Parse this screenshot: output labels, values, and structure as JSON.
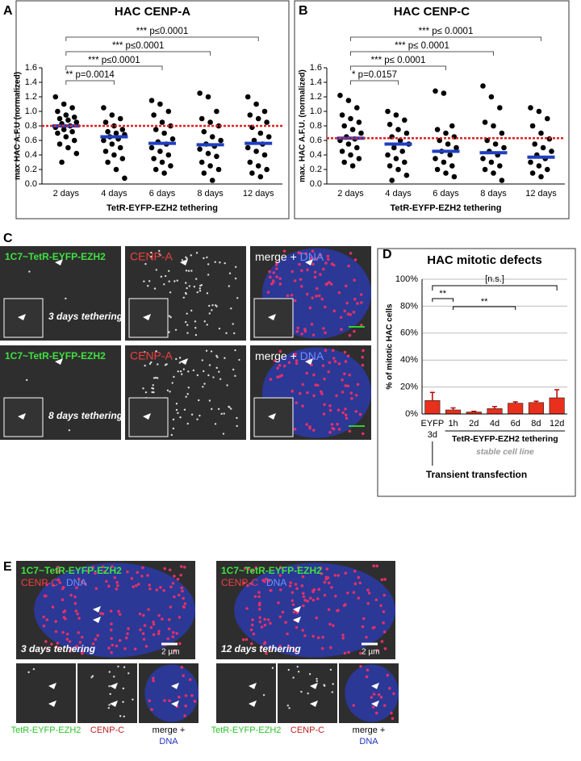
{
  "panel_labels": [
    "A",
    "B",
    "C",
    "D",
    "E"
  ],
  "chart_data": [
    {
      "type": "dotplot",
      "title": "HAC CENP-A",
      "y_label": "max HAC A.F.U (normalized)",
      "x_label": "TetR-EYFP-EZH2 tethering",
      "categories": [
        "2 days",
        "4 days",
        "6 days",
        "8 days",
        "12 days"
      ],
      "values": [
        [
          1.2,
          1.1,
          1.05,
          1.0,
          0.95,
          0.92,
          0.9,
          0.88,
          0.85,
          0.83,
          0.8,
          0.78,
          0.75,
          0.72,
          0.7,
          0.65,
          0.6,
          0.55,
          0.5,
          0.42,
          0.3
        ],
        [
          1.05,
          0.95,
          0.9,
          0.85,
          0.8,
          0.75,
          0.72,
          0.7,
          0.68,
          0.65,
          0.62,
          0.6,
          0.55,
          0.5,
          0.45,
          0.4,
          0.35,
          0.3,
          0.2,
          0.08
        ],
        [
          1.15,
          1.1,
          1.0,
          0.95,
          0.85,
          0.8,
          0.75,
          0.7,
          0.62,
          0.58,
          0.55,
          0.5,
          0.45,
          0.4,
          0.35,
          0.3,
          0.25,
          0.2,
          0.15
        ],
        [
          1.25,
          1.2,
          1.0,
          0.9,
          0.85,
          0.8,
          0.72,
          0.65,
          0.6,
          0.55,
          0.52,
          0.48,
          0.42,
          0.38,
          0.3,
          0.25,
          0.2,
          0.15,
          0.05
        ],
        [
          1.2,
          1.1,
          1.0,
          0.95,
          0.9,
          0.85,
          0.78,
          0.7,
          0.65,
          0.6,
          0.55,
          0.5,
          0.45,
          0.4,
          0.3,
          0.25,
          0.2,
          0.15,
          0.1
        ]
      ],
      "medians": [
        0.8,
        0.65,
        0.56,
        0.54,
        0.56
      ],
      "reference_line": 0.8,
      "comparisons": [
        "*** p≤0.0001",
        "*** p≤0.0001",
        "*** p≤0.0001",
        "** p=0.0014"
      ],
      "ylim": [
        0,
        1.6
      ],
      "yticks": [
        {
          "value": 0,
          "label": "0.0"
        },
        0.2,
        0.4,
        0.6,
        0.8,
        {
          "value": 1,
          "label": "1.0"
        },
        1.2,
        1.4,
        1.6
      ],
      "point_color": "#000000",
      "median_color": "#1f3fbf",
      "reference_color": "#e02020"
    },
    {
      "type": "dotplot",
      "title": "HAC CENP-C",
      "y_label": "max. HAC A.F.U. (normalized)",
      "x_label": "TetR-EYFP-EZH2 tethering",
      "categories": [
        "2 days",
        "4 days",
        "6 days",
        "8 days",
        "12 days"
      ],
      "values": [
        [
          1.22,
          1.15,
          1.05,
          0.95,
          0.9,
          0.85,
          0.8,
          0.75,
          0.7,
          0.65,
          0.62,
          0.6,
          0.55,
          0.5,
          0.45,
          0.4,
          0.35,
          0.3,
          0.25
        ],
        [
          1.0,
          0.95,
          0.88,
          0.82,
          0.75,
          0.7,
          0.65,
          0.6,
          0.55,
          0.5,
          0.45,
          0.4,
          0.35,
          0.3,
          0.25,
          0.2,
          0.12,
          0.05
        ],
        [
          1.28,
          1.25,
          0.8,
          0.75,
          0.7,
          0.65,
          0.6,
          0.55,
          0.5,
          0.45,
          0.4,
          0.35,
          0.3,
          0.25,
          0.2,
          0.15,
          0.1
        ],
        [
          1.35,
          1.2,
          1.05,
          0.85,
          0.8,
          0.7,
          0.6,
          0.55,
          0.5,
          0.45,
          0.4,
          0.35,
          0.3,
          0.25,
          0.2,
          0.15,
          0.05
        ],
        [
          1.05,
          1.0,
          0.9,
          0.8,
          0.7,
          0.62,
          0.55,
          0.5,
          0.45,
          0.4,
          0.35,
          0.3,
          0.25,
          0.2,
          0.15,
          0.1
        ]
      ],
      "medians": [
        0.63,
        0.55,
        0.45,
        0.43,
        0.37
      ],
      "reference_line": 0.63,
      "comparisons": [
        "*** p≤ 0.0001",
        "*** p≤ 0.0001",
        "*** p≤ 0.0001",
        "* p=0.0157"
      ],
      "ylim": [
        0,
        1.6
      ],
      "yticks": [
        {
          "value": 0,
          "label": "0.0"
        },
        0.2,
        0.4,
        0.6,
        0.8,
        {
          "value": 1,
          "label": "1.0"
        },
        1.2,
        1.4,
        1.6
      ],
      "point_color": "#000000",
      "median_color": "#1f3fbf",
      "reference_color": "#e02020"
    },
    {
      "type": "bar",
      "title": "HAC mitotic defects",
      "y_label": "% of mitotic HAC cells",
      "categories": [
        "EYFP",
        "1h",
        "2d",
        "4d",
        "6d",
        "8d",
        "12d"
      ],
      "category_sub": "3d",
      "values": [
        10,
        3,
        1.5,
        4,
        8,
        8.5,
        12
      ],
      "errors": [
        6,
        1.5,
        0.5,
        1.5,
        1,
        1,
        6
      ],
      "ylim": [
        0,
        100
      ],
      "yticks": [
        {
          "value": 0,
          "label": "0%"
        },
        {
          "value": 20,
          "label": "20%"
        },
        {
          "value": 40,
          "label": "40%"
        },
        {
          "value": 60,
          "label": "60%"
        },
        {
          "value": 80,
          "label": "80%"
        },
        {
          "value": 100,
          "label": "100%"
        }
      ],
      "grid": true,
      "color": "#e8301c",
      "error_color": "#c00000",
      "annotations": [
        "[n.s.]",
        "**",
        "**"
      ],
      "group_label": "TetR-EYFP-EZH2 tethering",
      "group_note": "stable cell line",
      "control_label": "Transient transfection"
    }
  ],
  "panel_c": {
    "channels": [
      "1C7~TetR-EYFP-EZH2",
      "CENP-A",
      "merge + ",
      "DNA"
    ],
    "rows": [
      "3 days tethering",
      "8 days tethering"
    ]
  },
  "panel_e": {
    "header": [
      "1C7~TetR-EYFP-EZH2",
      "CENP-C",
      "DNA"
    ],
    "conditions": [
      "3 days tethering",
      "12 days tethering"
    ],
    "scale": "2 µm",
    "insets": [
      "TetR-EYFP-EZH2",
      "CENP-C",
      "merge +",
      "DNA"
    ]
  }
}
